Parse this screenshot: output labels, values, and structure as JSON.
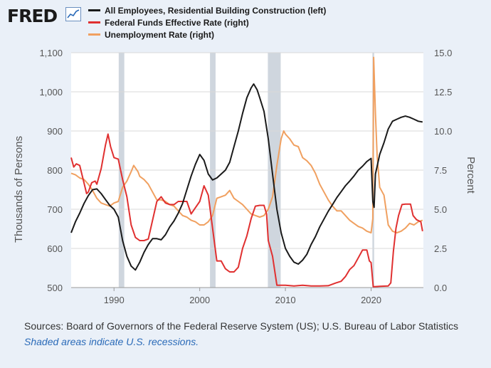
{
  "header": {
    "logo_text": "FRED",
    "logo_icon": "line-chart-icon"
  },
  "colors": {
    "employees": "#1a1a1a",
    "fedfunds": "#e03030",
    "unemployment": "#f0a060",
    "recession": "#cfd6de",
    "gridline": "#d8d8d8",
    "background": "#eaf0f8",
    "plot_bg": "#ffffff",
    "note": "#2a6ab8"
  },
  "chart_data": {
    "type": "line",
    "title": "",
    "xlabel": "",
    "ylabel_left": "Thousands of Persons",
    "ylabel_right": "Percent",
    "xlim": [
      1985.0,
      2026.1
    ],
    "ylim_left": [
      500,
      1100
    ],
    "ylim_right": [
      0,
      15
    ],
    "x_ticks": [
      1990,
      2000,
      2010,
      2020
    ],
    "x_tick_labels": [
      "1990",
      "2000",
      "2010",
      "2020"
    ],
    "y_left_ticks": [
      500,
      600,
      700,
      800,
      900,
      1000,
      1100
    ],
    "y_left_tick_labels": [
      "500",
      "600",
      "700",
      "800",
      "900",
      "1,000",
      "1,100"
    ],
    "y_right_ticks": [
      0,
      2.5,
      5,
      7.5,
      10,
      12.5,
      15
    ],
    "y_right_tick_labels": [
      "0.0",
      "2.5",
      "5.0",
      "7.5",
      "10.0",
      "12.5",
      "15.0"
    ],
    "recessions": [
      [
        1990.55,
        1991.2
      ],
      [
        2001.2,
        2001.85
      ],
      [
        2007.95,
        2009.45
      ],
      [
        2020.15,
        2020.35
      ]
    ],
    "series": [
      {
        "name": "All Employees, Residential Building Construction (left)",
        "axis": "left",
        "color": "#1a1a1a",
        "points": [
          [
            1985.0,
            640
          ],
          [
            1985.5,
            668
          ],
          [
            1986.0,
            690
          ],
          [
            1986.5,
            715
          ],
          [
            1987.0,
            735
          ],
          [
            1987.5,
            750
          ],
          [
            1988.0,
            752
          ],
          [
            1988.5,
            740
          ],
          [
            1989.0,
            725
          ],
          [
            1989.5,
            710
          ],
          [
            1990.0,
            700
          ],
          [
            1990.5,
            680
          ],
          [
            1991.0,
            620
          ],
          [
            1991.5,
            580
          ],
          [
            1992.0,
            555
          ],
          [
            1992.5,
            545
          ],
          [
            1993.0,
            565
          ],
          [
            1993.5,
            590
          ],
          [
            1994.0,
            610
          ],
          [
            1994.5,
            625
          ],
          [
            1995.0,
            625
          ],
          [
            1995.5,
            622
          ],
          [
            1996.0,
            635
          ],
          [
            1996.5,
            655
          ],
          [
            1997.0,
            670
          ],
          [
            1997.5,
            690
          ],
          [
            1998.0,
            715
          ],
          [
            1998.5,
            750
          ],
          [
            1999.0,
            785
          ],
          [
            1999.5,
            815
          ],
          [
            2000.0,
            840
          ],
          [
            2000.5,
            825
          ],
          [
            2001.0,
            790
          ],
          [
            2001.5,
            775
          ],
          [
            2002.0,
            780
          ],
          [
            2002.5,
            790
          ],
          [
            2003.0,
            800
          ],
          [
            2003.5,
            820
          ],
          [
            2004.0,
            860
          ],
          [
            2004.5,
            900
          ],
          [
            2005.0,
            945
          ],
          [
            2005.5,
            985
          ],
          [
            2006.0,
            1010
          ],
          [
            2006.3,
            1020
          ],
          [
            2006.7,
            1005
          ],
          [
            2007.0,
            985
          ],
          [
            2007.5,
            950
          ],
          [
            2008.0,
            880
          ],
          [
            2008.5,
            790
          ],
          [
            2009.0,
            700
          ],
          [
            2009.5,
            640
          ],
          [
            2010.0,
            600
          ],
          [
            2010.5,
            580
          ],
          [
            2011.0,
            565
          ],
          [
            2011.5,
            560
          ],
          [
            2012.0,
            570
          ],
          [
            2012.5,
            585
          ],
          [
            2013.0,
            610
          ],
          [
            2013.5,
            630
          ],
          [
            2014.0,
            655
          ],
          [
            2014.5,
            675
          ],
          [
            2015.0,
            695
          ],
          [
            2015.5,
            712
          ],
          [
            2016.0,
            730
          ],
          [
            2016.5,
            745
          ],
          [
            2017.0,
            760
          ],
          [
            2017.5,
            772
          ],
          [
            2018.0,
            785
          ],
          [
            2018.5,
            800
          ],
          [
            2019.0,
            810
          ],
          [
            2019.5,
            822
          ],
          [
            2020.0,
            830
          ],
          [
            2020.2,
            720
          ],
          [
            2020.35,
            705
          ],
          [
            2020.5,
            790
          ],
          [
            2021.0,
            840
          ],
          [
            2021.5,
            870
          ],
          [
            2022.0,
            905
          ],
          [
            2022.5,
            925
          ],
          [
            2023.0,
            930
          ],
          [
            2023.5,
            935
          ],
          [
            2024.0,
            938
          ],
          [
            2024.5,
            935
          ],
          [
            2025.0,
            930
          ],
          [
            2025.5,
            925
          ],
          [
            2026.0,
            923
          ]
        ]
      },
      {
        "name": "Federal Funds Effective Rate (right)",
        "axis": "right",
        "color": "#e03030",
        "points": [
          [
            1985.0,
            8.3
          ],
          [
            1985.3,
            7.7
          ],
          [
            1985.6,
            7.9
          ],
          [
            1986.0,
            7.8
          ],
          [
            1986.4,
            6.9
          ],
          [
            1986.8,
            6.0
          ],
          [
            1987.0,
            6.1
          ],
          [
            1987.4,
            6.7
          ],
          [
            1987.8,
            6.8
          ],
          [
            1988.0,
            6.6
          ],
          [
            1988.5,
            7.6
          ],
          [
            1989.0,
            9.1
          ],
          [
            1989.3,
            9.8
          ],
          [
            1989.6,
            9.0
          ],
          [
            1990.0,
            8.3
          ],
          [
            1990.5,
            8.2
          ],
          [
            1991.0,
            6.9
          ],
          [
            1991.5,
            5.8
          ],
          [
            1992.0,
            4.0
          ],
          [
            1992.5,
            3.2
          ],
          [
            1993.0,
            3.0
          ],
          [
            1993.5,
            3.0
          ],
          [
            1994.0,
            3.1
          ],
          [
            1994.5,
            4.3
          ],
          [
            1995.0,
            5.5
          ],
          [
            1995.5,
            5.8
          ],
          [
            1996.0,
            5.4
          ],
          [
            1996.5,
            5.3
          ],
          [
            1997.0,
            5.3
          ],
          [
            1997.5,
            5.5
          ],
          [
            1998.0,
            5.5
          ],
          [
            1998.5,
            5.5
          ],
          [
            1999.0,
            4.7
          ],
          [
            1999.5,
            5.1
          ],
          [
            2000.0,
            5.5
          ],
          [
            2000.5,
            6.5
          ],
          [
            2001.0,
            5.9
          ],
          [
            2001.5,
            3.8
          ],
          [
            2002.0,
            1.7
          ],
          [
            2002.5,
            1.7
          ],
          [
            2003.0,
            1.2
          ],
          [
            2003.5,
            1.0
          ],
          [
            2004.0,
            1.0
          ],
          [
            2004.5,
            1.3
          ],
          [
            2005.0,
            2.5
          ],
          [
            2005.5,
            3.3
          ],
          [
            2006.0,
            4.4
          ],
          [
            2006.5,
            5.2
          ],
          [
            2007.0,
            5.25
          ],
          [
            2007.5,
            5.25
          ],
          [
            2007.8,
            4.7
          ],
          [
            2008.0,
            3.0
          ],
          [
            2008.5,
            2.0
          ],
          [
            2009.0,
            0.15
          ],
          [
            2010.0,
            0.15
          ],
          [
            2011.0,
            0.1
          ],
          [
            2012.0,
            0.15
          ],
          [
            2013.0,
            0.1
          ],
          [
            2014.0,
            0.1
          ],
          [
            2015.0,
            0.12
          ],
          [
            2015.9,
            0.3
          ],
          [
            2016.5,
            0.4
          ],
          [
            2017.0,
            0.7
          ],
          [
            2017.5,
            1.15
          ],
          [
            2018.0,
            1.4
          ],
          [
            2018.5,
            1.9
          ],
          [
            2019.0,
            2.4
          ],
          [
            2019.5,
            2.4
          ],
          [
            2019.8,
            1.7
          ],
          [
            2020.0,
            1.6
          ],
          [
            2020.25,
            0.05
          ],
          [
            2021.0,
            0.08
          ],
          [
            2022.0,
            0.1
          ],
          [
            2022.3,
            0.3
          ],
          [
            2022.6,
            2.3
          ],
          [
            2022.9,
            3.8
          ],
          [
            2023.2,
            4.6
          ],
          [
            2023.6,
            5.3
          ],
          [
            2024.0,
            5.33
          ],
          [
            2024.6,
            5.33
          ],
          [
            2024.9,
            4.6
          ],
          [
            2025.3,
            4.33
          ],
          [
            2025.8,
            4.2
          ],
          [
            2026.0,
            3.6
          ]
        ]
      },
      {
        "name": "Unemployment Rate (right)",
        "axis": "right",
        "color": "#f0a060",
        "points": [
          [
            1985.0,
            7.3
          ],
          [
            1985.5,
            7.2
          ],
          [
            1986.0,
            7.0
          ],
          [
            1986.5,
            6.9
          ],
          [
            1987.0,
            6.6
          ],
          [
            1987.5,
            6.2
          ],
          [
            1988.0,
            5.7
          ],
          [
            1988.5,
            5.4
          ],
          [
            1989.0,
            5.3
          ],
          [
            1989.5,
            5.2
          ],
          [
            1990.0,
            5.4
          ],
          [
            1990.5,
            5.5
          ],
          [
            1991.0,
            6.4
          ],
          [
            1991.5,
            6.8
          ],
          [
            1992.0,
            7.4
          ],
          [
            1992.3,
            7.8
          ],
          [
            1992.8,
            7.4
          ],
          [
            1993.0,
            7.1
          ],
          [
            1993.5,
            6.9
          ],
          [
            1994.0,
            6.6
          ],
          [
            1994.5,
            6.1
          ],
          [
            1995.0,
            5.6
          ],
          [
            1995.5,
            5.6
          ],
          [
            1996.0,
            5.5
          ],
          [
            1996.5,
            5.3
          ],
          [
            1997.0,
            5.2
          ],
          [
            1997.5,
            4.9
          ],
          [
            1998.0,
            4.6
          ],
          [
            1998.5,
            4.5
          ],
          [
            1999.0,
            4.3
          ],
          [
            1999.5,
            4.2
          ],
          [
            2000.0,
            4.0
          ],
          [
            2000.5,
            4.0
          ],
          [
            2001.0,
            4.2
          ],
          [
            2001.5,
            4.6
          ],
          [
            2002.0,
            5.7
          ],
          [
            2002.5,
            5.8
          ],
          [
            2003.0,
            5.9
          ],
          [
            2003.5,
            6.2
          ],
          [
            2004.0,
            5.7
          ],
          [
            2004.5,
            5.5
          ],
          [
            2005.0,
            5.3
          ],
          [
            2005.5,
            5.0
          ],
          [
            2006.0,
            4.7
          ],
          [
            2006.5,
            4.6
          ],
          [
            2007.0,
            4.5
          ],
          [
            2007.5,
            4.6
          ],
          [
            2008.0,
            5.0
          ],
          [
            2008.5,
            5.8
          ],
          [
            2009.0,
            7.8
          ],
          [
            2009.5,
            9.5
          ],
          [
            2009.8,
            10.0
          ],
          [
            2010.0,
            9.8
          ],
          [
            2010.5,
            9.5
          ],
          [
            2011.0,
            9.1
          ],
          [
            2011.5,
            9.0
          ],
          [
            2012.0,
            8.3
          ],
          [
            2012.5,
            8.1
          ],
          [
            2013.0,
            7.8
          ],
          [
            2013.5,
            7.3
          ],
          [
            2014.0,
            6.6
          ],
          [
            2014.5,
            6.1
          ],
          [
            2015.0,
            5.6
          ],
          [
            2015.5,
            5.2
          ],
          [
            2016.0,
            4.9
          ],
          [
            2016.5,
            4.9
          ],
          [
            2017.0,
            4.6
          ],
          [
            2017.5,
            4.3
          ],
          [
            2018.0,
            4.1
          ],
          [
            2018.5,
            3.9
          ],
          [
            2019.0,
            3.8
          ],
          [
            2019.5,
            3.6
          ],
          [
            2020.0,
            3.5
          ],
          [
            2020.2,
            4.4
          ],
          [
            2020.3,
            14.7
          ],
          [
            2020.5,
            11.1
          ],
          [
            2020.7,
            8.4
          ],
          [
            2021.0,
            6.4
          ],
          [
            2021.5,
            5.9
          ],
          [
            2022.0,
            4.0
          ],
          [
            2022.5,
            3.6
          ],
          [
            2023.0,
            3.5
          ],
          [
            2023.5,
            3.6
          ],
          [
            2024.0,
            3.8
          ],
          [
            2024.5,
            4.1
          ],
          [
            2025.0,
            4.0
          ],
          [
            2025.5,
            4.2
          ],
          [
            2026.0,
            4.3
          ]
        ]
      }
    ],
    "legend": "top-left"
  },
  "source": "Sources: Board of Governors of the Federal Reserve System (US); U.S. Bureau of Labor Statistics",
  "note": "Shaded areas indicate U.S. recessions."
}
